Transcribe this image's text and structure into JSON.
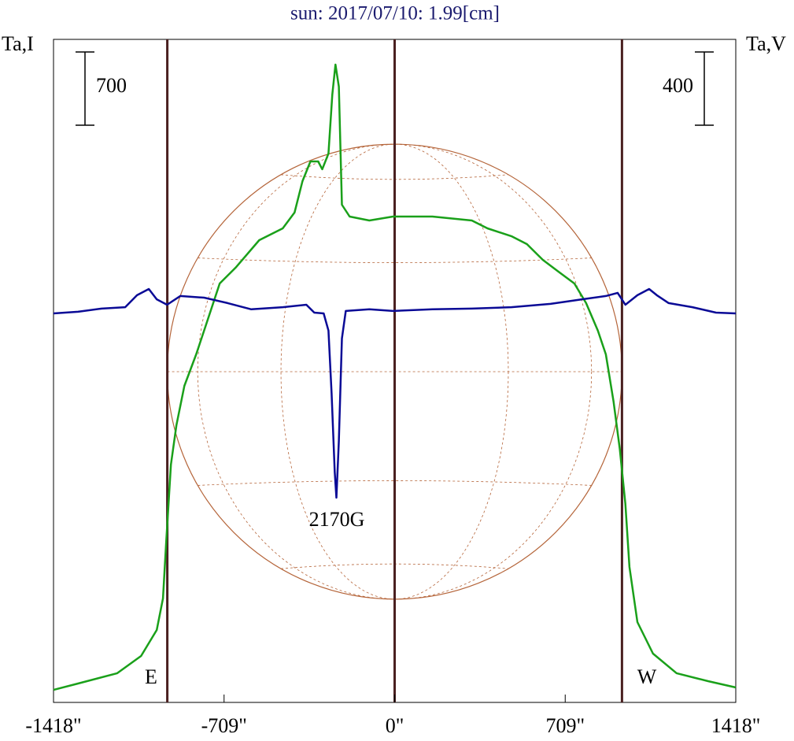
{
  "chart_data": {
    "type": "line",
    "title": "sun: 2017/07/10: 1.99[cm]",
    "y_label": "Ta,I",
    "y2_label": "Ta,V",
    "xlim": [
      -1418,
      1418
    ],
    "xticks": [
      {
        "value": -1418,
        "label": "-1418\""
      },
      {
        "value": -709,
        "label": "-709\""
      },
      {
        "value": 0,
        "label": "0\""
      },
      {
        "value": 709,
        "label": "709\""
      },
      {
        "value": 1418,
        "label": "1418\""
      }
    ],
    "ylim": [
      0,
      6340
    ],
    "y2lim": [
      -2140,
      1480
    ],
    "limb_lines": [
      -945,
      0,
      945
    ],
    "disk_radius": 945,
    "scale_bars": [
      {
        "axis": "y",
        "value": 700
      },
      {
        "axis": "y2",
        "value": 400
      }
    ],
    "annotations": [
      {
        "text": "E"
      },
      {
        "text": "W"
      },
      {
        "text": "2170G"
      }
    ],
    "series": [
      {
        "name": "I",
        "color": "#1aa01a",
        "x": [
          -1418,
          -1316,
          -1153,
          -1054,
          -989,
          -963,
          -950,
          -930,
          -907,
          -874,
          -825,
          -776,
          -727,
          -661,
          -563,
          -465,
          -416,
          -383,
          -350,
          -318,
          -301,
          -275,
          -259,
          -246,
          -232,
          -219,
          -187,
          -105,
          -7,
          157,
          321,
          386,
          485,
          550,
          616,
          681,
          747,
          796,
          845,
          878,
          910,
          936,
          959,
          976,
          1009,
          1074,
          1172,
          1303,
          1418
        ],
        "values": [
          120,
          181,
          279,
          444,
          693,
          994,
          1521,
          2274,
          2651,
          3027,
          3328,
          3667,
          4006,
          4157,
          4420,
          4533,
          4684,
          4985,
          5173,
          5173,
          5098,
          5248,
          5813,
          6099,
          5888,
          4759,
          4646,
          4608,
          4646,
          4646,
          4608,
          4533,
          4458,
          4382,
          4232,
          4119,
          4006,
          3818,
          3554,
          3328,
          2876,
          2425,
          1898,
          1295,
          768,
          467,
          279,
          203,
          143
        ]
      },
      {
        "name": "V",
        "color": "#0a0a96",
        "axis": "y2",
        "x": [
          -1418,
          -1316,
          -1218,
          -1120,
          -1071,
          -1022,
          -989,
          -946,
          -891,
          -792,
          -694,
          -596,
          -465,
          -367,
          -334,
          -295,
          -275,
          -262,
          -249,
          -242,
          -232,
          -219,
          -203,
          -105,
          -7,
          157,
          321,
          485,
          648,
          779,
          878,
          927,
          959,
          1009,
          1058,
          1090,
          1139,
          1238,
          1336,
          1418
        ],
        "values": [
          -16,
          -7,
          10,
          18,
          83,
          117,
          61,
          31,
          79,
          70,
          40,
          6,
          18,
          31,
          -12,
          -16,
          -110,
          -454,
          -884,
          -1022,
          -712,
          -153,
          -3,
          6,
          -3,
          6,
          10,
          18,
          36,
          61,
          79,
          96,
          31,
          83,
          117,
          83,
          40,
          18,
          -12,
          -16
        ]
      }
    ]
  }
}
